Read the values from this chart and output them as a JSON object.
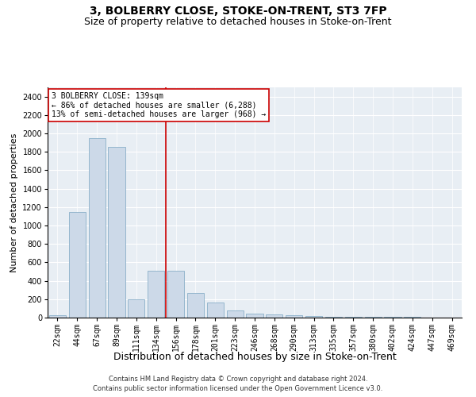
{
  "title1": "3, BOLBERRY CLOSE, STOKE-ON-TRENT, ST3 7FP",
  "title2": "Size of property relative to detached houses in Stoke-on-Trent",
  "xlabel": "Distribution of detached houses by size in Stoke-on-Trent",
  "ylabel": "Number of detached properties",
  "categories": [
    "22sqm",
    "44sqm",
    "67sqm",
    "89sqm",
    "111sqm",
    "134sqm",
    "156sqm",
    "178sqm",
    "201sqm",
    "223sqm",
    "246sqm",
    "268sqm",
    "290sqm",
    "313sqm",
    "335sqm",
    "357sqm",
    "380sqm",
    "402sqm",
    "424sqm",
    "447sqm",
    "469sqm"
  ],
  "values": [
    25,
    1150,
    1950,
    1850,
    200,
    510,
    510,
    265,
    160,
    75,
    40,
    35,
    30,
    15,
    10,
    8,
    6,
    5,
    5,
    4,
    3
  ],
  "bar_color": "#ccd9e8",
  "bar_edge_color": "#8aafc8",
  "annotation_line1": "3 BOLBERRY CLOSE: 139sqm",
  "annotation_line2": "← 86% of detached houses are smaller (6,288)",
  "annotation_line3": "13% of semi-detached houses are larger (968) →",
  "red_line_x": 5.5,
  "ylim": [
    0,
    2500
  ],
  "yticks": [
    0,
    200,
    400,
    600,
    800,
    1000,
    1200,
    1400,
    1600,
    1800,
    2000,
    2200,
    2400
  ],
  "footer1": "Contains HM Land Registry data © Crown copyright and database right 2024.",
  "footer2": "Contains public sector information licensed under the Open Government Licence v3.0.",
  "background_color": "#e8eef4",
  "grid_color": "#ffffff",
  "annotation_box_color": "#ffffff",
  "annotation_box_edge": "#cc0000",
  "red_line_color": "#cc0000",
  "title1_fontsize": 10,
  "title2_fontsize": 9,
  "xlabel_fontsize": 9,
  "ylabel_fontsize": 8,
  "tick_fontsize": 7,
  "annotation_fontsize": 7,
  "footer_fontsize": 6
}
